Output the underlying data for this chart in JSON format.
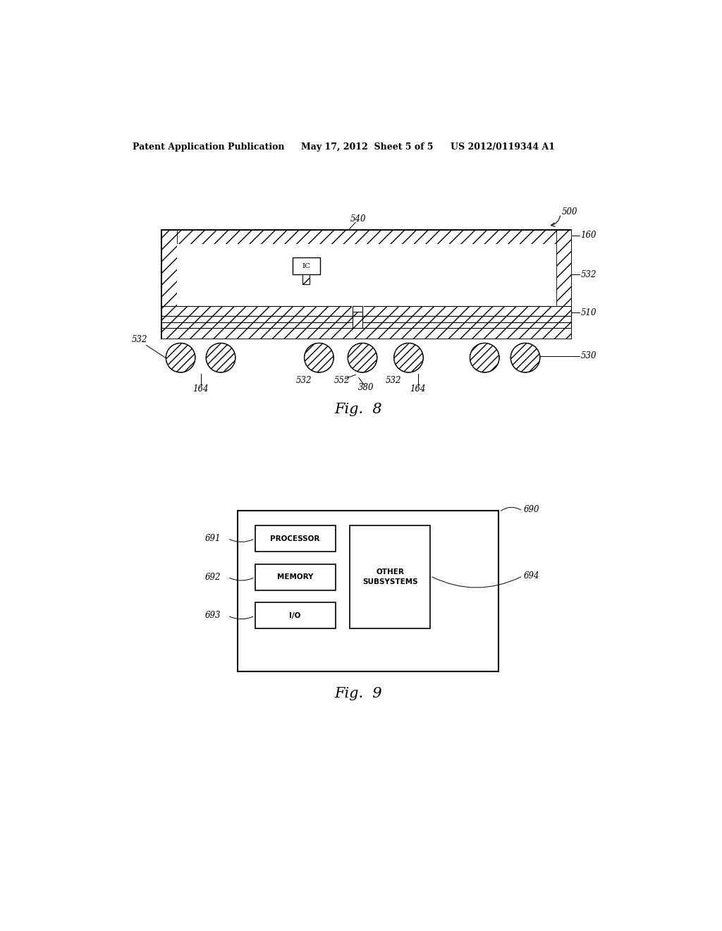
{
  "bg_color": "#ffffff",
  "header_left": "Patent Application Publication",
  "header_mid": "May 17, 2012  Sheet 5 of 5",
  "header_right": "US 2012/0119344 A1",
  "fig8_caption": "Fig.  8",
  "fig9_caption": "Fig.  9"
}
